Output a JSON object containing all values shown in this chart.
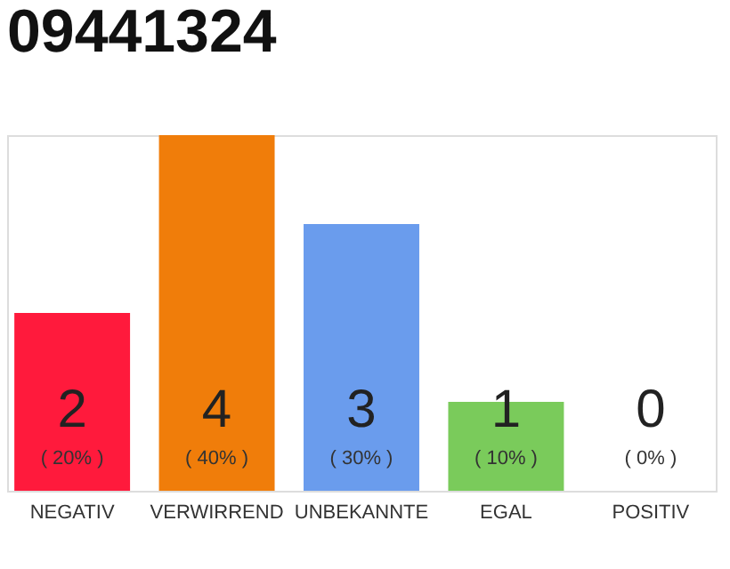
{
  "chart_data": {
    "type": "bar",
    "title": "09441324",
    "categories": [
      "NEGATIV",
      "VERWIRREND",
      "UNBEKANNTE",
      "EGAL",
      "POSITIV"
    ],
    "values": [
      20,
      40,
      30,
      10,
      0
    ],
    "colors": [
      "#ff1a3c",
      "#f07d0a",
      "#6a9ced",
      "#7acb5b",
      "#cccccc"
    ],
    "tick_labels": "x",
    "value_labels": [
      "( 20% )",
      "( 40% )",
      "( 30% )",
      "( 10% )",
      "( 0% )"
    ],
    "annotations": [
      "2",
      "4",
      "3",
      "1",
      "0"
    ]
  }
}
